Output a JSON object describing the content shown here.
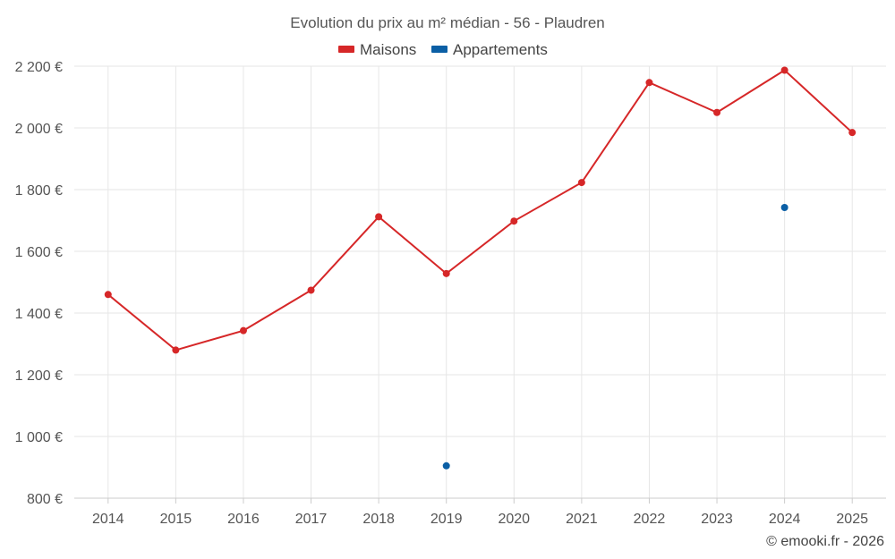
{
  "chart_data": {
    "type": "line",
    "title": "Evolution du prix au m² médian - 56 - Plaudren",
    "xlabel": "",
    "ylabel": "",
    "categories": [
      "2014",
      "2015",
      "2016",
      "2017",
      "2018",
      "2019",
      "2020",
      "2021",
      "2022",
      "2023",
      "2024",
      "2025"
    ],
    "ylim": [
      800,
      2200
    ],
    "yticks": [
      800,
      1000,
      1200,
      1400,
      1600,
      1800,
      2000,
      2200
    ],
    "ytick_labels": [
      "800 €",
      "1 000 €",
      "1 200 €",
      "1 400 €",
      "1 600 €",
      "1 800 €",
      "2 000 €",
      "2 200 €"
    ],
    "grid": true,
    "legend_position": "top-center",
    "series": [
      {
        "name": "Maisons",
        "color": "#d62728",
        "values": [
          1460,
          1280,
          1343,
          1474,
          1712,
          1528,
          1698,
          1823,
          2147,
          2050,
          2187,
          1985
        ]
      },
      {
        "name": "Appartements",
        "color": "#0b5fa5",
        "values": [
          null,
          null,
          null,
          null,
          null,
          905,
          null,
          null,
          null,
          null,
          1742,
          null
        ]
      }
    ],
    "credit": "© emooki.fr - 2026"
  }
}
